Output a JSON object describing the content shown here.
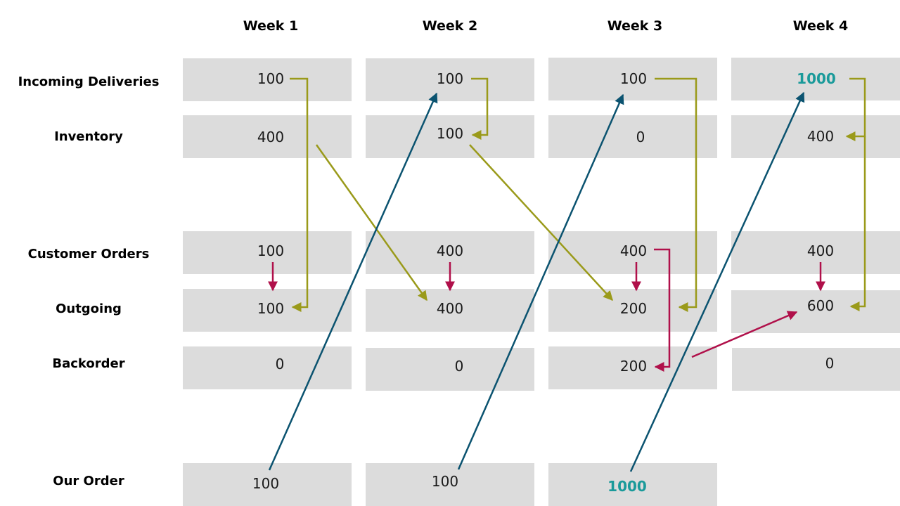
{
  "weeks": [
    "Week 1",
    "Week 2",
    "Week 3",
    "Week 4"
  ],
  "rows": {
    "incoming": "Incoming Deliveries",
    "inventory": "Inventory",
    "customer_orders": "Customer Orders",
    "outgoing": "Outgoing",
    "backorder": "Backorder",
    "our_order": "Our Order"
  },
  "values": {
    "incoming": [
      "100",
      "100",
      "100",
      "1000"
    ],
    "inventory": [
      "400",
      "100",
      "0",
      "400"
    ],
    "customer_orders": [
      "100",
      "400",
      "400",
      "400"
    ],
    "outgoing": [
      "100",
      "400",
      "200",
      "600"
    ],
    "backorder": [
      "0",
      "0",
      "200",
      "0"
    ],
    "our_order": [
      "100",
      "100",
      "1000"
    ]
  },
  "colors": {
    "cell_bg": "#dcdcdc",
    "inventory_flow": "#9a9a1a",
    "order_flow": "#0b5370",
    "demand_flow": "#b0104a",
    "highlight": "#1a9a9a"
  }
}
